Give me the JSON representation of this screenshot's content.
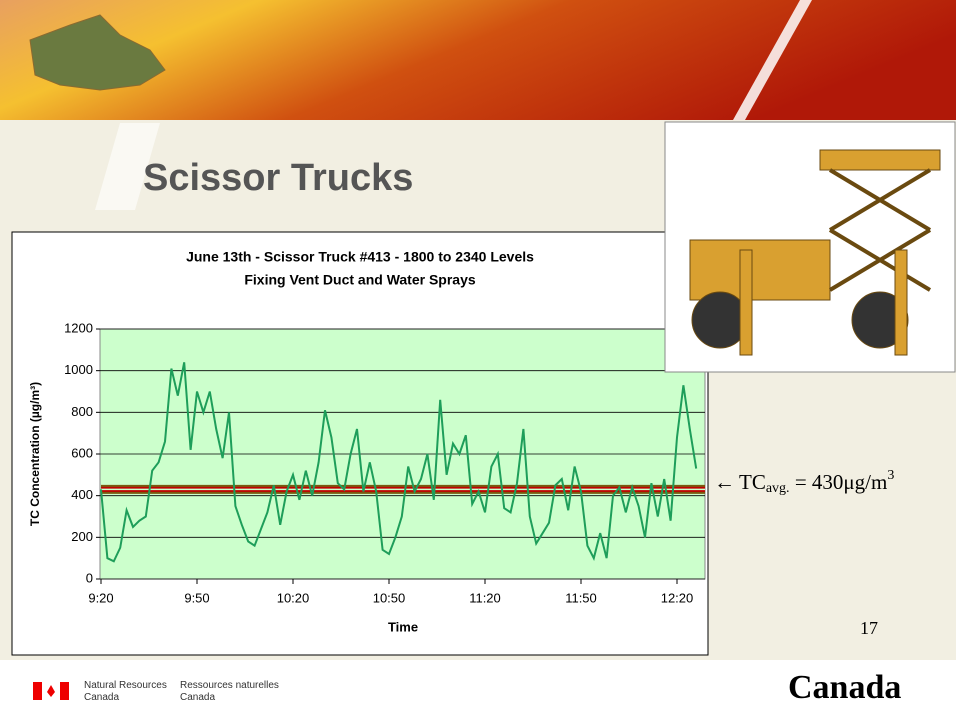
{
  "slide": {
    "title": "Scissor Trucks",
    "page_number": "17",
    "footer_en": "Natural Resources\nCanada",
    "footer_fr": "Ressources naturelles\nCanada",
    "wordmark": "Canada",
    "annotation": {
      "arrow": "←",
      "main": "TC",
      "sub": "avg.",
      "rest": " = 430μg/m",
      "sup": "3",
      "value": 430,
      "color": "#c00000"
    }
  },
  "chart_data": {
    "type": "line",
    "title": "June 13th - Scissor Truck #413 - 1800 to 2340 Levels",
    "subtitle": "Fixing Vent Duct and Water Sprays",
    "x_label": "Time",
    "y_label": "TC Concentration (µg/m³)",
    "x": [
      "9:20",
      "9:22",
      "9:24",
      "9:26",
      "9:28",
      "9:30",
      "9:32",
      "9:34",
      "9:36",
      "9:38",
      "9:40",
      "9:42",
      "9:44",
      "9:46",
      "9:48",
      "9:50",
      "9:52",
      "9:54",
      "9:56",
      "9:58",
      "10:00",
      "10:02",
      "10:04",
      "10:06",
      "10:08",
      "10:10",
      "10:12",
      "10:14",
      "10:16",
      "10:18",
      "10:20",
      "10:22",
      "10:24",
      "10:26",
      "10:28",
      "10:30",
      "10:32",
      "10:34",
      "10:36",
      "10:38",
      "10:40",
      "10:42",
      "10:44",
      "10:46",
      "10:48",
      "10:50",
      "10:52",
      "10:54",
      "10:56",
      "10:58",
      "11:00",
      "11:02",
      "11:04",
      "11:06",
      "11:08",
      "11:10",
      "11:12",
      "11:14",
      "11:16",
      "11:18",
      "11:20",
      "11:22",
      "11:24",
      "11:26",
      "11:28",
      "11:30",
      "11:32",
      "11:34",
      "11:36",
      "11:38",
      "11:40",
      "11:42",
      "11:44",
      "11:46",
      "11:48",
      "11:50",
      "11:52",
      "11:54",
      "11:56",
      "11:58",
      "12:00",
      "12:02",
      "12:04",
      "12:06",
      "12:08",
      "12:10",
      "12:12",
      "12:14",
      "12:16",
      "12:18",
      "12:20",
      "12:22",
      "12:24",
      "12:26"
    ],
    "series": [
      {
        "color": "#1e9e5a",
        "values": [
          430,
          100,
          85,
          150,
          330,
          250,
          280,
          300,
          520,
          560,
          660,
          1010,
          880,
          1040,
          620,
          900,
          800,
          900,
          720,
          580,
          800,
          350,
          260,
          180,
          160,
          240,
          320,
          450,
          260,
          420,
          500,
          380,
          520,
          400,
          560,
          810,
          680,
          460,
          430,
          600,
          720,
          420,
          560,
          420,
          140,
          120,
          200,
          300,
          540,
          420,
          480,
          600,
          380,
          860,
          500,
          650,
          600,
          690,
          360,
          420,
          320,
          540,
          600,
          340,
          320,
          460,
          720,
          300,
          170,
          220,
          270,
          450,
          480,
          330,
          540,
          420,
          160,
          100,
          220,
          100,
          400,
          440,
          320,
          440,
          350,
          200,
          460,
          300,
          480,
          280,
          680,
          930,
          720,
          530
        ]
      }
    ],
    "xticks": [
      "9:20",
      "9:50",
      "10:20",
      "10:50",
      "11:20",
      "11:50",
      "12:20"
    ],
    "ylim": [
      0,
      1200
    ],
    "yticks": [
      0,
      200,
      400,
      600,
      800,
      1000,
      1200
    ],
    "grid": true,
    "plot_background": "#ccffcc"
  }
}
